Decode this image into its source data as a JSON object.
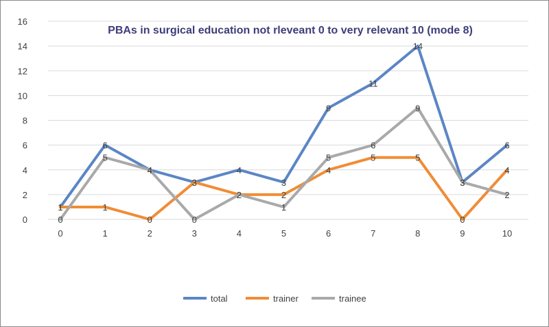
{
  "chart_data": {
    "type": "line",
    "title": "PBAs in surgical education not rleveant 0 to very relevant 10 (mode 8)",
    "xlabel": "",
    "ylabel": "",
    "x": [
      0,
      1,
      2,
      3,
      4,
      5,
      6,
      7,
      8,
      9,
      10
    ],
    "x_tick_labels": [
      "0",
      "1",
      "2",
      "3",
      "4",
      "5",
      "6",
      "7",
      "8",
      "9",
      "10"
    ],
    "y_tick_labels": [
      "0",
      "2",
      "4",
      "6",
      "8",
      "10",
      "12",
      "14",
      "16"
    ],
    "ylim": [
      0,
      16
    ],
    "grid": "horizontal",
    "legend_position": "bottom",
    "series": [
      {
        "name": "total",
        "color": "#5b86c5",
        "values": [
          1,
          6,
          4,
          3,
          4,
          3,
          9,
          11,
          14,
          3,
          6
        ],
        "labels": [
          "1",
          "6",
          "4",
          "3",
          "4",
          "3",
          "9",
          "11",
          "14",
          "3",
          "6"
        ]
      },
      {
        "name": "trainer",
        "color": "#f08c36",
        "values": [
          1,
          1,
          0,
          3,
          2,
          2,
          4,
          5,
          5,
          0,
          4
        ],
        "labels": [
          "1",
          "1",
          "0",
          "3",
          "2",
          "2",
          "4",
          "5",
          "5",
          "0",
          "4"
        ]
      },
      {
        "name": "trainee",
        "color": "#a9a9a9",
        "values": [
          0,
          5,
          4,
          0,
          2,
          1,
          5,
          6,
          9,
          3,
          2
        ],
        "labels": [
          "0",
          "5",
          "4",
          "0",
          "2",
          "1",
          "5",
          "6",
          "9",
          "3",
          "2"
        ]
      }
    ]
  }
}
